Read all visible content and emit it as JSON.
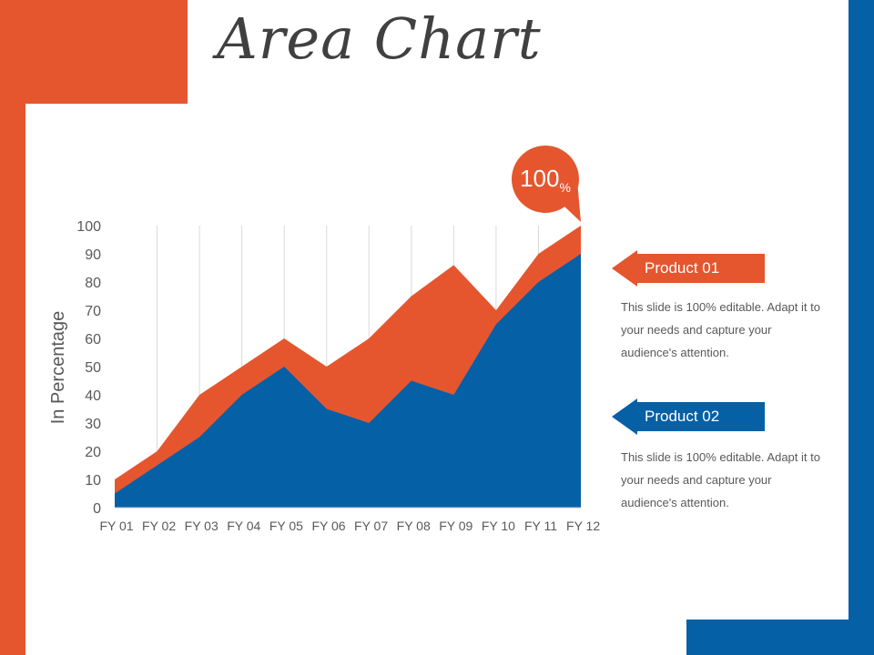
{
  "title": "Area Chart",
  "colors": {
    "orange": "#E5562F",
    "blue": "#0560A6"
  },
  "callout": {
    "value": "100",
    "unit": "%"
  },
  "chart_data": {
    "type": "area",
    "categories": [
      "FY 01",
      "FY 02",
      "FY 03",
      "FY 04",
      "FY 05",
      "FY 06",
      "FY 07",
      "FY 08",
      "FY 09",
      "FY 10",
      "FY 11",
      "FY 12"
    ],
    "series": [
      {
        "name": "Product 01",
        "color": "#E5562F",
        "values": [
          10,
          20,
          40,
          50,
          60,
          50,
          60,
          75,
          86,
          70,
          90,
          100
        ]
      },
      {
        "name": "Product 02",
        "color": "#0560A6",
        "values": [
          5,
          15,
          25,
          40,
          50,
          35,
          30,
          45,
          40,
          65,
          80,
          90
        ]
      }
    ],
    "ylabel": "In Percentage",
    "ylim": [
      0,
      100
    ],
    "yticks": [
      0,
      10,
      20,
      30,
      40,
      50,
      60,
      70,
      80,
      90,
      100
    ],
    "grid": "vertical"
  },
  "legend": [
    {
      "label": "Product 01",
      "description": "This slide is 100% editable. Adapt it to your needs and capture your audience's attention."
    },
    {
      "label": "Product 02",
      "description": "This slide is 100% editable. Adapt it to your needs and capture your audience's attention."
    }
  ]
}
